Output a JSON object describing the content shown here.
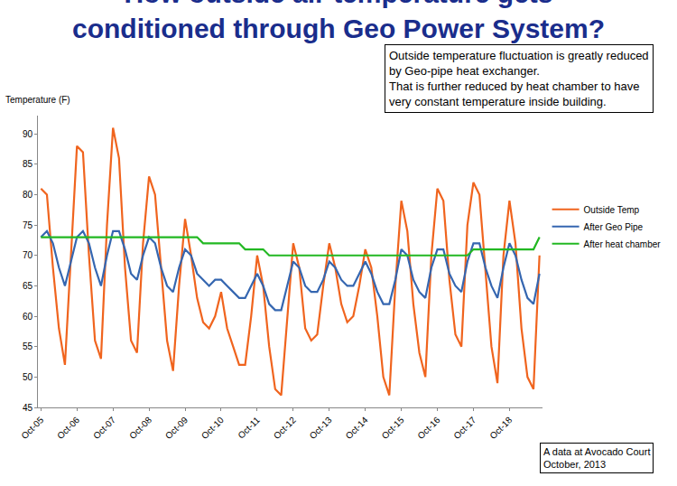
{
  "chart_data": {
    "type": "line",
    "title": [
      "How outside air temperature gets",
      "conditioned through Geo Power System?"
    ],
    "y_label": "Temperature (F)",
    "annotation": [
      "Outside temperature fluctuation is greatly reduced",
      "by Geo-pipe heat exchanger.",
      "That is further reduced by heat chamber to have",
      "very constant temperature inside building."
    ],
    "note": [
      "A data at Avocado Court",
      "October, 2013"
    ],
    "categories": [
      "Oct-05",
      null,
      null,
      null,
      null,
      null,
      "Oct-06",
      null,
      null,
      null,
      null,
      null,
      "Oct-07",
      null,
      null,
      null,
      null,
      null,
      "Oct-08",
      null,
      null,
      null,
      null,
      null,
      "Oct-09",
      null,
      null,
      null,
      null,
      null,
      "Oct-10",
      null,
      null,
      null,
      null,
      null,
      "Oct-11",
      null,
      null,
      null,
      null,
      null,
      "Oct-12",
      null,
      null,
      null,
      null,
      null,
      "Oct-13",
      null,
      null,
      null,
      null,
      null,
      "Oct-14",
      null,
      null,
      null,
      null,
      null,
      "Oct-15",
      null,
      null,
      null,
      null,
      null,
      "Oct-16",
      null,
      null,
      null,
      null,
      null,
      "Oct-17",
      null,
      null,
      null,
      null,
      null,
      "Oct-18",
      null,
      null,
      null,
      null,
      null
    ],
    "series": [
      {
        "name": "Outside Temp",
        "color": "#f0641e",
        "values": [
          81,
          80,
          68,
          58,
          52,
          70,
          88,
          87,
          70,
          56,
          53,
          75,
          91,
          86,
          68,
          56,
          54,
          72,
          83,
          80,
          68,
          56,
          51,
          65,
          76,
          70,
          63,
          59,
          58,
          60,
          64,
          58,
          55,
          52,
          52,
          60,
          70,
          65,
          55,
          48,
          47,
          60,
          72,
          68,
          58,
          56,
          57,
          65,
          72,
          68,
          62,
          59,
          60,
          65,
          71,
          68,
          60,
          50,
          47,
          65,
          79,
          74,
          62,
          54,
          50,
          70,
          81,
          79,
          66,
          57,
          55,
          75,
          82,
          80,
          68,
          55,
          49,
          70,
          79,
          72,
          58,
          50,
          48,
          70
        ]
      },
      {
        "name": "After Geo Pipe",
        "color": "#3566b0",
        "values": [
          73,
          74,
          72,
          68,
          65,
          69,
          73,
          74,
          72,
          68,
          65,
          70,
          74,
          74,
          71,
          67,
          66,
          70,
          73,
          72,
          68,
          65,
          64,
          68,
          71,
          70,
          67,
          66,
          65,
          66,
          66,
          65,
          64,
          63,
          63,
          65,
          67,
          65,
          62,
          61,
          61,
          65,
          69,
          68,
          65,
          64,
          64,
          66,
          69,
          68,
          66,
          65,
          65,
          67,
          69,
          67,
          64,
          62,
          62,
          66,
          71,
          70,
          66,
          64,
          63,
          68,
          71,
          71,
          67,
          65,
          64,
          69,
          72,
          72,
          68,
          65,
          63,
          68,
          72,
          70,
          66,
          63,
          62,
          67
        ]
      },
      {
        "name": "After heat chamber",
        "color": "#22b822",
        "values": [
          73,
          73,
          73,
          73,
          73,
          73,
          73,
          73,
          73,
          73,
          73,
          73,
          73,
          73,
          73,
          73,
          73,
          73,
          73,
          73,
          73,
          73,
          73,
          73,
          73,
          73,
          73,
          72,
          72,
          72,
          72,
          72,
          72,
          72,
          71,
          71,
          71,
          71,
          70,
          70,
          70,
          70,
          70,
          70,
          70,
          70,
          70,
          70,
          70,
          70,
          70,
          70,
          70,
          70,
          70,
          70,
          70,
          70,
          70,
          70,
          70,
          70,
          70,
          70,
          70,
          70,
          70,
          70,
          70,
          70,
          70,
          70,
          71,
          71,
          71,
          71,
          71,
          71,
          71,
          71,
          71,
          71,
          71,
          73
        ]
      }
    ],
    "ylim": [
      45,
      93
    ],
    "yticks": [
      45,
      50,
      55,
      60,
      65,
      70,
      75,
      80,
      85,
      90
    ],
    "grid": false,
    "legend": "right"
  }
}
